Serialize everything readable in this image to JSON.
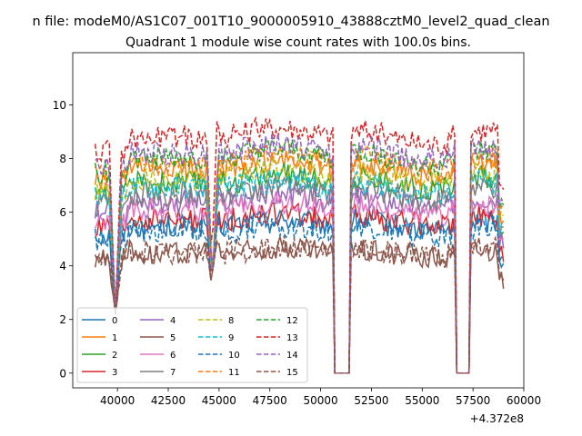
{
  "figure": {
    "suptitle": "n file: modeM0/AS1C07_001T10_9000005910_43888cztM0_level2_quad_clean",
    "title": "Quadrant 1 module wise count rates with 100.0s bins.",
    "x_offset_label": "+4.372e8"
  },
  "chart_data": {
    "type": "line",
    "title": "Quadrant 1 module wise count rates with 100.0s bins.",
    "xlabel": "",
    "ylabel": "",
    "x_offset": 437200000,
    "xlim": [
      37800,
      60000
    ],
    "ylim": [
      -0.55,
      11.95
    ],
    "x_ticks": [
      40000,
      42500,
      45000,
      47500,
      50000,
      52500,
      55000,
      57500,
      60000
    ],
    "x_tick_labels": [
      "40000",
      "42500",
      "45000",
      "47500",
      "50000",
      "52500",
      "55000",
      "57500",
      "60000"
    ],
    "y_ticks": [
      0,
      2,
      4,
      6,
      8,
      10
    ],
    "y_tick_labels": [
      "0",
      "2",
      "4",
      "6",
      "8",
      "10"
    ],
    "grid": false,
    "legend_placement": "lower-left",
    "legend_columns": 4,
    "bin_seconds": 100,
    "time_range": [
      38900,
      59000
    ],
    "gaps": [
      [
        50700,
        51400
      ],
      [
        56700,
        57300
      ]
    ],
    "dip_times": [
      39900,
      44700
    ],
    "series": [
      {
        "name": "0",
        "color": "#1f77b4",
        "dash": "solid",
        "mean": 5.5
      },
      {
        "name": "1",
        "color": "#ff7f0e",
        "dash": "solid",
        "mean": 7.6
      },
      {
        "name": "2",
        "color": "#2ca02c",
        "dash": "solid",
        "mean": 7.1
      },
      {
        "name": "3",
        "color": "#d62728",
        "dash": "solid",
        "mean": 5.7
      },
      {
        "name": "4",
        "color": "#9467bd",
        "dash": "solid",
        "mean": 6.4
      },
      {
        "name": "5",
        "color": "#8c564b",
        "dash": "solid",
        "mean": 4.5
      },
      {
        "name": "6",
        "color": "#e377c2",
        "dash": "solid",
        "mean": 6.1
      },
      {
        "name": "7",
        "color": "#7f7f7f",
        "dash": "solid",
        "mean": 6.7
      },
      {
        "name": "8",
        "color": "#bcbd22",
        "dash": "dashed",
        "mean": 7.3
      },
      {
        "name": "9",
        "color": "#17becf",
        "dash": "dashed",
        "mean": 6.9
      },
      {
        "name": "10",
        "color": "#1f77b4",
        "dash": "dashed",
        "mean": 5.3
      },
      {
        "name": "11",
        "color": "#ff7f0e",
        "dash": "dashed",
        "mean": 7.8
      },
      {
        "name": "12",
        "color": "#2ca02c",
        "dash": "dashed",
        "mean": 8.0
      },
      {
        "name": "13",
        "color": "#d62728",
        "dash": "dashed",
        "mean": 8.8
      },
      {
        "name": "14",
        "color": "#9467bd",
        "dash": "dashed",
        "mean": 8.2
      },
      {
        "name": "15",
        "color": "#8c564b",
        "dash": "dashed",
        "mean": 4.5
      }
    ]
  }
}
